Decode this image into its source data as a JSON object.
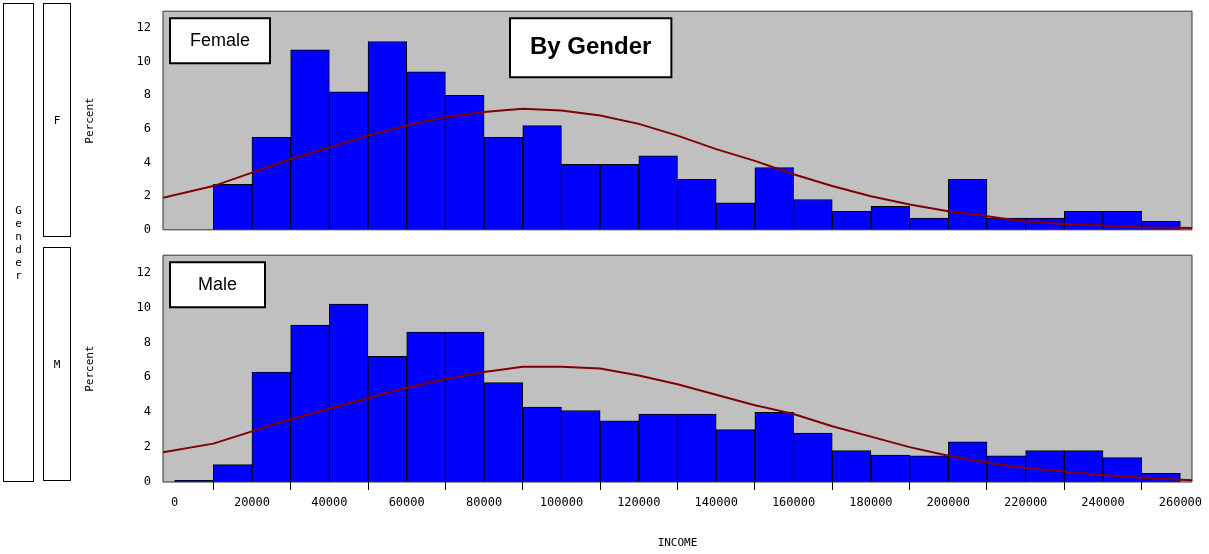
{
  "chart_data": [
    {
      "type": "histogram",
      "title": "By Gender",
      "ylabel": "Percent",
      "annotations": [
        "Female",
        "F",
        "Gender"
      ],
      "tick_labels": "y",
      "xlim": [
        -3000,
        263000
      ],
      "ylim": [
        0,
        13
      ],
      "yticks": [
        0,
        2,
        4,
        6,
        8,
        10,
        12
      ],
      "bins": [
        0,
        10000,
        20000,
        30000,
        40000,
        50000,
        60000,
        70000,
        80000,
        90000,
        100000,
        110000,
        120000,
        130000,
        140000,
        150000,
        160000,
        170000,
        180000,
        190000,
        200000,
        210000,
        220000,
        230000,
        240000,
        250000,
        260000
      ],
      "series": [
        {
          "color": "#0000ff",
          "values": [
            0,
            2.7,
            5.5,
            10.7,
            8.2,
            11.2,
            9.4,
            8.0,
            5.5,
            6.2,
            3.9,
            3.9,
            4.4,
            3.0,
            1.6,
            3.7,
            1.8,
            1.1,
            1.4,
            0.7,
            3.0,
            0.7,
            0.7,
            1.1,
            1.1,
            0.5
          ]
        },
        {
          "type": "line",
          "color": "#800000",
          "x": [
            -3000,
            10000,
            20000,
            30000,
            40000,
            50000,
            60000,
            70000,
            80000,
            90000,
            100000,
            110000,
            120000,
            130000,
            140000,
            150000,
            160000,
            170000,
            180000,
            190000,
            200000,
            210000,
            220000,
            230000,
            240000,
            250000,
            263000
          ],
          "values": [
            1.9,
            2.6,
            3.4,
            4.2,
            4.9,
            5.6,
            6.2,
            6.7,
            7.0,
            7.2,
            7.1,
            6.8,
            6.3,
            5.6,
            4.8,
            4.1,
            3.3,
            2.6,
            2.0,
            1.5,
            1.1,
            0.8,
            0.5,
            0.35,
            0.25,
            0.15,
            0.1
          ]
        }
      ]
    },
    {
      "type": "histogram",
      "xlabel": "INCOME",
      "ylabel": "Percent",
      "annotations": [
        "Male",
        "M"
      ],
      "xlim": [
        -3000,
        263000
      ],
      "xticks": [
        0,
        20000,
        40000,
        60000,
        80000,
        100000,
        120000,
        140000,
        160000,
        180000,
        200000,
        220000,
        240000,
        260000
      ],
      "ylim": [
        0,
        13
      ],
      "yticks": [
        0,
        2,
        4,
        6,
        8,
        10,
        12
      ],
      "bins": [
        0,
        10000,
        20000,
        30000,
        40000,
        50000,
        60000,
        70000,
        80000,
        90000,
        100000,
        110000,
        120000,
        130000,
        140000,
        150000,
        160000,
        170000,
        180000,
        190000,
        200000,
        210000,
        220000,
        230000,
        240000,
        250000,
        260000
      ],
      "series": [
        {
          "color": "#0000ff",
          "values": [
            0.1,
            1.0,
            6.3,
            9.0,
            10.2,
            7.2,
            8.6,
            8.6,
            5.7,
            4.3,
            4.1,
            3.5,
            3.9,
            3.9,
            3.0,
            4.0,
            2.8,
            1.8,
            1.55,
            1.5,
            2.3,
            1.5,
            1.8,
            1.8,
            1.4,
            0.5
          ]
        },
        {
          "type": "line",
          "color": "#800000",
          "x": [
            -3000,
            10000,
            20000,
            30000,
            40000,
            50000,
            60000,
            70000,
            80000,
            90000,
            100000,
            110000,
            120000,
            130000,
            140000,
            150000,
            160000,
            170000,
            180000,
            190000,
            200000,
            210000,
            220000,
            230000,
            240000,
            250000,
            263000
          ],
          "values": [
            1.7,
            2.2,
            2.9,
            3.6,
            4.2,
            4.8,
            5.4,
            5.9,
            6.3,
            6.6,
            6.6,
            6.5,
            6.1,
            5.6,
            5.0,
            4.4,
            3.9,
            3.2,
            2.6,
            2.0,
            1.5,
            1.1,
            0.8,
            0.6,
            0.4,
            0.25,
            0.1
          ]
        }
      ]
    }
  ]
}
